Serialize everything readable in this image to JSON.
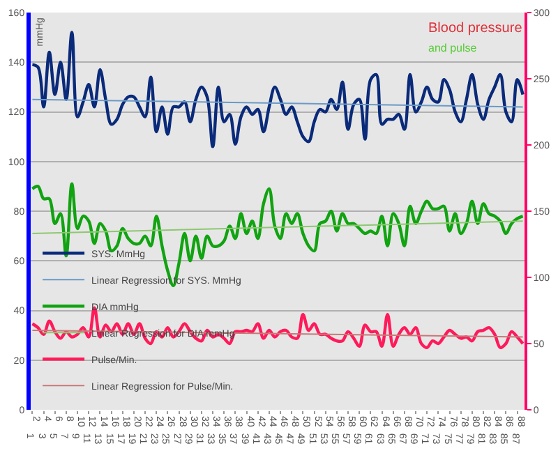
{
  "chart_data": {
    "type": "line",
    "title": "Blood pressure",
    "subtitle": "and pulse",
    "ylabel": "mmHg",
    "categories": [
      "1",
      "2",
      "3",
      "4",
      "5",
      "6",
      "7",
      "8",
      "9",
      "10",
      "11",
      "12",
      "13",
      "14",
      "15",
      "16",
      "17",
      "18",
      "19",
      "20",
      "21",
      "22",
      "23",
      "24",
      "25",
      "26",
      "27",
      "28",
      "29",
      "30",
      "31",
      "32",
      "33",
      "34",
      "35",
      "36",
      "37",
      "38",
      "39",
      "40",
      "41",
      "42",
      "43",
      "44",
      "45",
      "46",
      "47",
      "48",
      "49",
      "50",
      "51",
      "52",
      "53",
      "54",
      "55",
      "56",
      "57",
      "58",
      "59",
      "60",
      "61",
      "62",
      "63",
      "64",
      "65",
      "66",
      "67",
      "68",
      "69",
      "70",
      "71",
      "72",
      "73",
      "74",
      "75",
      "76",
      "77",
      "78",
      "79",
      "80",
      "81",
      "82",
      "83",
      "84",
      "85",
      "86",
      "87",
      "88"
    ],
    "series": [
      {
        "name": "SYS. MmHg",
        "color": "#0a2a7a",
        "values": [
          139,
          138,
          122,
          144,
          127,
          140,
          125,
          152,
          118,
          124,
          131,
          122,
          137,
          125,
          115,
          117,
          123,
          126,
          126,
          122,
          118,
          134,
          112,
          122,
          111,
          122,
          122,
          124,
          116,
          125,
          130,
          126,
          106,
          130,
          116,
          119,
          107,
          118,
          122,
          119,
          121,
          112,
          122,
          130,
          125,
          119,
          122,
          116,
          110,
          108,
          116,
          121,
          120,
          125,
          121,
          132,
          113,
          123,
          125,
          109,
          133,
          135,
          115,
          117,
          117,
          119,
          113,
          135,
          120,
          124,
          130,
          125,
          124,
          133,
          129,
          120,
          116,
          125,
          135,
          123,
          117,
          125,
          130,
          135,
          120,
          116,
          133,
          127
        ]
      },
      {
        "name": "Linear Regression for SYS. MmHg",
        "color": "#6a9ac8",
        "x": [
          "1",
          "88"
        ],
        "values": [
          125,
          122
        ]
      },
      {
        "name": "DIA mmHg",
        "color": "#11a311",
        "values": [
          89,
          90,
          85,
          85,
          75,
          79,
          62,
          91,
          73,
          78,
          76,
          67,
          75,
          72,
          64,
          66,
          73,
          69,
          67,
          67,
          70,
          66,
          78,
          66,
          56,
          50,
          59,
          71,
          60,
          70,
          61,
          70,
          66,
          66,
          68,
          74,
          69,
          79,
          71,
          76,
          69,
          83,
          89,
          74,
          69,
          79,
          75,
          79,
          71,
          66,
          64,
          75,
          76,
          80,
          72,
          79,
          75,
          75,
          73,
          71,
          72,
          71,
          78,
          66,
          79,
          75,
          66,
          82,
          75,
          80,
          84,
          81,
          81,
          82,
          72,
          79,
          71,
          75,
          84,
          75,
          83,
          79,
          78,
          76,
          71,
          75,
          77,
          78
        ]
      },
      {
        "name": "Linear Regression for DIA mmHg",
        "color": "#8cc870",
        "x": [
          "1",
          "88"
        ],
        "values": [
          71,
          76
        ]
      },
      {
        "name": "Pulse/Min.",
        "color": "#ff1a5a",
        "axis": "y2",
        "values": [
          65,
          62,
          57,
          67,
          59,
          54,
          59,
          55,
          57,
          62,
          55,
          77,
          55,
          64,
          59,
          65,
          57,
          65,
          57,
          65,
          54,
          50,
          59,
          55,
          62,
          55,
          59,
          65,
          59,
          54,
          52,
          60,
          55,
          57,
          54,
          50,
          59,
          59,
          60,
          59,
          65,
          54,
          60,
          55,
          59,
          60,
          55,
          54,
          72,
          60,
          65,
          57,
          57,
          54,
          52,
          52,
          59,
          54,
          48,
          64,
          59,
          59,
          48,
          72,
          48,
          57,
          62,
          57,
          62,
          50,
          47,
          52,
          50,
          55,
          60,
          57,
          54,
          55,
          52,
          59,
          60,
          62,
          57,
          47,
          50,
          59,
          55,
          50
        ]
      },
      {
        "name": "Linear Regression for Pulse/Min.",
        "color": "#c87878",
        "axis": "y2",
        "x": [
          "1",
          "88"
        ],
        "values": [
          60,
          55
        ]
      }
    ],
    "ylim": [
      0,
      160
    ],
    "yticks": [
      0,
      20,
      40,
      60,
      80,
      100,
      120,
      140,
      160
    ],
    "y2lim": [
      0,
      300
    ],
    "y2ticks": [
      0,
      50,
      100,
      150,
      200,
      250,
      300
    ],
    "grid": "y",
    "legend": "bottom left",
    "marker": "none",
    "line_style": "solid"
  }
}
